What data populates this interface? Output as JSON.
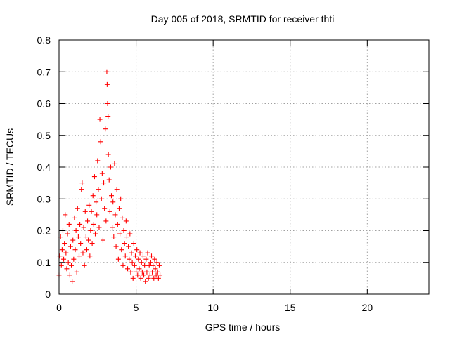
{
  "chart_data": {
    "type": "scatter",
    "title": "Day 005 of 2018, SRMTID for receiver thti",
    "xlabel": "GPS time / hours",
    "ylabel": "SRMTID / TECUs",
    "xlim": [
      0,
      24
    ],
    "ylim": [
      0,
      0.8
    ],
    "xticks": [
      0,
      5,
      10,
      15,
      20
    ],
    "xtick_labels": [
      "0",
      "5",
      "10",
      "15",
      "20"
    ],
    "yticks": [
      0,
      0.1,
      0.2,
      0.3,
      0.4,
      0.5,
      0.6,
      0.7,
      0.8
    ],
    "ytick_labels": [
      "0",
      "0.1",
      "0.2",
      "0.3",
      "0.4",
      "0.5",
      "0.6",
      "0.7",
      "0.8"
    ],
    "grid": true,
    "marker": "+",
    "series": [
      {
        "name": "SRMTID",
        "color": "#ff0000",
        "points": [
          [
            0.0,
            0.06
          ],
          [
            0.05,
            0.12
          ],
          [
            0.1,
            0.18
          ],
          [
            0.15,
            0.09
          ],
          [
            0.2,
            0.14
          ],
          [
            0.25,
            0.2
          ],
          [
            0.3,
            0.11
          ],
          [
            0.35,
            0.16
          ],
          [
            0.4,
            0.25
          ],
          [
            0.45,
            0.13
          ],
          [
            0.5,
            0.08
          ],
          [
            0.55,
            0.19
          ],
          [
            0.6,
            0.1
          ],
          [
            0.65,
            0.22
          ],
          [
            0.7,
            0.06
          ],
          [
            0.75,
            0.15
          ],
          [
            0.8,
            0.09
          ],
          [
            0.85,
            0.04
          ],
          [
            0.9,
            0.17
          ],
          [
            0.95,
            0.11
          ],
          [
            1.0,
            0.24
          ],
          [
            1.05,
            0.14
          ],
          [
            1.1,
            0.2
          ],
          [
            1.15,
            0.07
          ],
          [
            1.2,
            0.27
          ],
          [
            1.25,
            0.18
          ],
          [
            1.3,
            0.12
          ],
          [
            1.35,
            0.22
          ],
          [
            1.4,
            0.16
          ],
          [
            1.45,
            0.33
          ],
          [
            1.5,
            0.35
          ],
          [
            1.55,
            0.13
          ],
          [
            1.6,
            0.21
          ],
          [
            1.65,
            0.09
          ],
          [
            1.7,
            0.26
          ],
          [
            1.75,
            0.18
          ],
          [
            1.8,
            0.14
          ],
          [
            1.85,
            0.23
          ],
          [
            1.9,
            0.17
          ],
          [
            1.95,
            0.28
          ],
          [
            2.0,
            0.12
          ],
          [
            2.05,
            0.2
          ],
          [
            2.1,
            0.26
          ],
          [
            2.15,
            0.16
          ],
          [
            2.2,
            0.31
          ],
          [
            2.25,
            0.22
          ],
          [
            2.3,
            0.37
          ],
          [
            2.35,
            0.19
          ],
          [
            2.4,
            0.29
          ],
          [
            2.45,
            0.25
          ],
          [
            2.5,
            0.42
          ],
          [
            2.55,
            0.33
          ],
          [
            2.6,
            0.21
          ],
          [
            2.65,
            0.55
          ],
          [
            2.7,
            0.48
          ],
          [
            2.75,
            0.3
          ],
          [
            2.8,
            0.38
          ],
          [
            2.85,
            0.17
          ],
          [
            2.9,
            0.35
          ],
          [
            2.95,
            0.27
          ],
          [
            3.0,
            0.52
          ],
          [
            3.05,
            0.23
          ],
          [
            3.1,
            0.7
          ],
          [
            3.12,
            0.66
          ],
          [
            3.15,
            0.6
          ],
          [
            3.18,
            0.56
          ],
          [
            3.2,
            0.44
          ],
          [
            3.25,
            0.36
          ],
          [
            3.3,
            0.26
          ],
          [
            3.35,
            0.4
          ],
          [
            3.4,
            0.31
          ],
          [
            3.45,
            0.21
          ],
          [
            3.5,
            0.29
          ],
          [
            3.55,
            0.18
          ],
          [
            3.6,
            0.41
          ],
          [
            3.65,
            0.25
          ],
          [
            3.7,
            0.15
          ],
          [
            3.75,
            0.33
          ],
          [
            3.8,
            0.22
          ],
          [
            3.85,
            0.11
          ],
          [
            3.9,
            0.27
          ],
          [
            3.95,
            0.19
          ],
          [
            4.0,
            0.3
          ],
          [
            4.05,
            0.14
          ],
          [
            4.1,
            0.24
          ],
          [
            4.15,
            0.09
          ],
          [
            4.2,
            0.2
          ],
          [
            4.25,
            0.16
          ],
          [
            4.3,
            0.12
          ],
          [
            4.35,
            0.23
          ],
          [
            4.4,
            0.18
          ],
          [
            4.45,
            0.08
          ],
          [
            4.5,
            0.15
          ],
          [
            4.55,
            0.11
          ],
          [
            4.6,
            0.19
          ],
          [
            4.65,
            0.07
          ],
          [
            4.7,
            0.13
          ],
          [
            4.75,
            0.1
          ],
          [
            4.8,
            0.05
          ],
          [
            4.85,
            0.16
          ],
          [
            4.9,
            0.09
          ],
          [
            4.95,
            0.12
          ],
          [
            5.0,
            0.07
          ],
          [
            5.05,
            0.14
          ],
          [
            5.1,
            0.06
          ],
          [
            5.15,
            0.11
          ],
          [
            5.2,
            0.08
          ],
          [
            5.25,
            0.13
          ],
          [
            5.3,
            0.05
          ],
          [
            5.35,
            0.1
          ],
          [
            5.4,
            0.07
          ],
          [
            5.45,
            0.12
          ],
          [
            5.5,
            0.06
          ],
          [
            5.55,
            0.09
          ],
          [
            5.6,
            0.04
          ],
          [
            5.65,
            0.11
          ],
          [
            5.7,
            0.07
          ],
          [
            5.75,
            0.13
          ],
          [
            5.8,
            0.05
          ],
          [
            5.85,
            0.09
          ],
          [
            5.9,
            0.06
          ],
          [
            5.95,
            0.1
          ],
          [
            6.0,
            0.12
          ],
          [
            6.05,
            0.07
          ],
          [
            6.1,
            0.09
          ],
          [
            6.15,
            0.05
          ],
          [
            6.2,
            0.11
          ],
          [
            6.25,
            0.08
          ],
          [
            6.3,
            0.06
          ],
          [
            6.35,
            0.1
          ],
          [
            6.4,
            0.07
          ],
          [
            6.45,
            0.05
          ],
          [
            6.5,
            0.09
          ],
          [
            6.55,
            0.06
          ]
        ]
      }
    ]
  }
}
